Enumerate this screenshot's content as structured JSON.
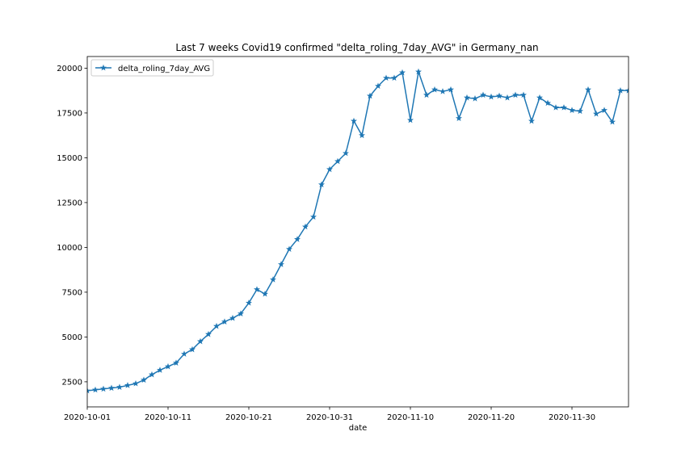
{
  "chart_data": {
    "type": "line",
    "title": "Last 7 weeks Covid19 confirmed \"delta_roling_7day_AVG\" in Germany_nan",
    "xlabel": "date",
    "ylabel": "",
    "x_start": "2020-10-01",
    "x_end": "2020-12-07",
    "ylim": [
      1100,
      20650
    ],
    "x_ticks": [
      "2020-10-01",
      "2020-10-11",
      "2020-10-21",
      "2020-10-31",
      "2020-11-10",
      "2020-11-20",
      "2020-11-30"
    ],
    "y_ticks": [
      2500,
      5000,
      7500,
      10000,
      12500,
      15000,
      17500,
      20000
    ],
    "y_tick_labels": [
      "2500",
      "5000",
      "7500",
      "10000",
      "12500",
      "15000",
      "17500",
      "20000"
    ],
    "grid": false,
    "legend_position": "top-left",
    "series": [
      {
        "name": "delta_roling_7day_AVG",
        "color": "#1f77b4",
        "marker": "star",
        "x": [
          "2020-10-01",
          "2020-10-02",
          "2020-10-03",
          "2020-10-04",
          "2020-10-05",
          "2020-10-06",
          "2020-10-07",
          "2020-10-08",
          "2020-10-09",
          "2020-10-10",
          "2020-10-11",
          "2020-10-12",
          "2020-10-13",
          "2020-10-14",
          "2020-10-15",
          "2020-10-16",
          "2020-10-17",
          "2020-10-18",
          "2020-10-19",
          "2020-10-20",
          "2020-10-21",
          "2020-10-22",
          "2020-10-23",
          "2020-10-24",
          "2020-10-25",
          "2020-10-26",
          "2020-10-27",
          "2020-10-28",
          "2020-10-29",
          "2020-10-30",
          "2020-10-31",
          "2020-11-01",
          "2020-11-02",
          "2020-11-03",
          "2020-11-04",
          "2020-11-05",
          "2020-11-06",
          "2020-11-07",
          "2020-11-08",
          "2020-11-09",
          "2020-11-10",
          "2020-11-11",
          "2020-11-12",
          "2020-11-13",
          "2020-11-14",
          "2020-11-15",
          "2020-11-16",
          "2020-11-17",
          "2020-11-18",
          "2020-11-19",
          "2020-11-20",
          "2020-11-21",
          "2020-11-22",
          "2020-11-23",
          "2020-11-24",
          "2020-11-25",
          "2020-11-26",
          "2020-11-27",
          "2020-11-28",
          "2020-11-29",
          "2020-11-30",
          "2020-12-01",
          "2020-12-02",
          "2020-12-03",
          "2020-12-04",
          "2020-12-05",
          "2020-12-06",
          "2020-12-07"
        ],
        "values": [
          2000,
          2050,
          2100,
          2150,
          2200,
          2300,
          2400,
          2600,
          2900,
          3150,
          3350,
          3550,
          4050,
          4300,
          4750,
          5150,
          5600,
          5850,
          6050,
          6300,
          6900,
          7650,
          7400,
          8200,
          9050,
          9900,
          10450,
          11150,
          11700,
          13500,
          14350,
          14800,
          15250,
          17050,
          16250,
          18450,
          19000,
          19450,
          19450,
          19750,
          17100,
          19800,
          18500,
          18800,
          18700,
          18800,
          17200,
          18350,
          18300,
          18500,
          18400,
          18450,
          18350,
          18500,
          18500,
          17050,
          18350,
          18050,
          17800,
          17800,
          17650,
          17600,
          18800,
          17450,
          17650,
          17000,
          18750,
          18750
        ]
      }
    ]
  }
}
